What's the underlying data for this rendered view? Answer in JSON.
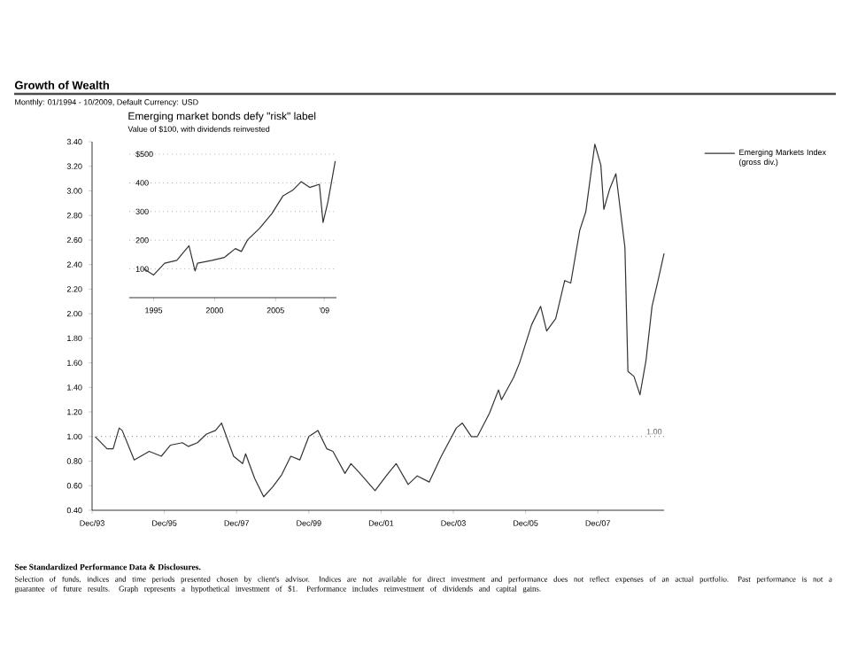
{
  "chart_data": [
    {
      "type": "line",
      "title": "Growth of Wealth",
      "subtitle": "Monthly: 01/1994 - 10/2009, Default Currency: USD",
      "annotations": [
        "See Standardized Performance Data & Disclosures.",
        "Selection of funds, indices and time periods presented chosen by client's advisor. Indices are not available for direct investment and performance does not reflect expenses of an actual portfolio. Past performance is not a guarantee of future results. Graph represents a hypothetical investment of $1. Performance includes reinvestment of dividends and capital gains."
      ],
      "x": [
        "1994-01",
        "1994-05",
        "1994-07",
        "1994-09",
        "1994-10",
        "1995-02",
        "1995-07",
        "1995-11",
        "1996-02",
        "1996-06",
        "1996-08",
        "1996-11",
        "1997-02",
        "1997-05",
        "1997-07",
        "1997-11",
        "1998-02",
        "1998-03",
        "1998-06",
        "1998-09",
        "1998-12",
        "1999-03",
        "1999-06",
        "1999-09",
        "1999-12",
        "2000-03",
        "2000-06",
        "2000-08",
        "2000-12",
        "2001-02",
        "2001-05",
        "2001-10",
        "2002-02",
        "2002-05",
        "2002-09",
        "2002-12",
        "2003-04",
        "2003-08",
        "2004-01",
        "2004-03",
        "2004-06",
        "2004-08",
        "2004-12",
        "2005-03",
        "2005-04",
        "2005-08",
        "2005-10",
        "2006-02",
        "2006-05",
        "2006-07",
        "2006-10",
        "2007-01",
        "2007-03",
        "2007-06",
        "2007-08",
        "2007-11",
        "2008-01",
        "2008-02",
        "2008-04",
        "2008-06",
        "2008-09",
        "2008-10",
        "2008-12",
        "2009-02",
        "2009-04",
        "2009-06",
        "2009-08",
        "2009-10"
      ],
      "series": [
        {
          "name": "Emerging Markets Index (gross div.)",
          "color": "#333333",
          "values": [
            1.0,
            0.9,
            0.9,
            1.07,
            1.05,
            0.81,
            0.88,
            0.84,
            0.93,
            0.95,
            0.92,
            0.95,
            1.02,
            1.05,
            1.11,
            0.84,
            0.78,
            0.86,
            0.66,
            0.51,
            0.59,
            0.69,
            0.84,
            0.81,
            1.0,
            1.05,
            0.9,
            0.88,
            0.7,
            0.78,
            0.7,
            0.56,
            0.69,
            0.78,
            0.61,
            0.68,
            0.63,
            0.84,
            1.07,
            1.11,
            1.0,
            1.0,
            1.19,
            1.38,
            1.3,
            1.48,
            1.6,
            1.91,
            2.06,
            1.86,
            1.96,
            2.27,
            2.25,
            2.68,
            2.83,
            3.38,
            3.21,
            2.85,
            3.02,
            3.14,
            2.54,
            1.53,
            1.49,
            1.34,
            1.62,
            2.06,
            2.27,
            2.49
          ]
        }
      ],
      "xlim": [
        "1993-12",
        "2009-10"
      ],
      "xticks": [
        {
          "value": "1993-12",
          "label": "Dec/93"
        },
        {
          "value": "1995-12",
          "label": "Dec/95"
        },
        {
          "value": "1997-12",
          "label": "Dec/97"
        },
        {
          "value": "1999-12",
          "label": "Dec/99"
        },
        {
          "value": "2001-12",
          "label": "Dec/01"
        },
        {
          "value": "2003-12",
          "label": "Dec/03"
        },
        {
          "value": "2005-12",
          "label": "Dec/05"
        },
        {
          "value": "2007-12",
          "label": "Dec/07"
        }
      ],
      "ylim": [
        0.4,
        3.4
      ],
      "yticks": [
        {
          "value": 0.4,
          "label": "0.40"
        },
        {
          "value": 0.6,
          "label": "0.60"
        },
        {
          "value": 0.8,
          "label": "0.80"
        },
        {
          "value": 1.0,
          "label": "1.00"
        },
        {
          "value": 1.2,
          "label": "1.20"
        },
        {
          "value": 1.4,
          "label": "1.40"
        },
        {
          "value": 1.6,
          "label": "1.60"
        },
        {
          "value": 1.8,
          "label": "1.80"
        },
        {
          "value": 2.0,
          "label": "2.00"
        },
        {
          "value": 2.2,
          "label": "2.20"
        },
        {
          "value": 2.4,
          "label": "2.40"
        },
        {
          "value": 2.6,
          "label": "2.60"
        },
        {
          "value": 2.8,
          "label": "2.80"
        },
        {
          "value": 3.0,
          "label": "3.00"
        },
        {
          "value": 3.2,
          "label": "3.20"
        },
        {
          "value": 3.4,
          "label": "3.40"
        }
      ],
      "ref_lines": [
        {
          "axis": "y",
          "value": 1.0,
          "label": "1.00",
          "color": "#888888",
          "line_style": "dotted"
        }
      ],
      "legend": "right",
      "marker": "none",
      "line_style": "solid"
    },
    {
      "type": "line",
      "title": "Emerging market bonds defy \"risk\" label",
      "subtitle": "Value of $100, with dividends reinvested",
      "x": [
        1994.2,
        1995.0,
        1995.9,
        1996.9,
        1997.9,
        1998.4,
        1998.6,
        1999.8,
        2000.8,
        2001.7,
        2002.2,
        2002.7,
        2003.7,
        2004.7,
        2005.6,
        2006.4,
        2007.1,
        2007.8,
        2008.6,
        2008.9,
        2009.3,
        2009.9
      ],
      "series": [
        {
          "color": "#333333",
          "values": [
            100,
            79,
            120,
            130,
            181,
            93,
            120,
            130,
            140,
            171,
            161,
            201,
            242,
            293,
            354,
            374,
            404,
            384,
            395,
            262,
            334,
            476
          ]
        }
      ],
      "xlim": [
        1993,
        2010
      ],
      "xticks": [
        1995,
        2000,
        2005,
        {
          "value": 2009,
          "label": "'09"
        }
      ],
      "ylim": [
        0,
        500
      ],
      "yticks": [
        100,
        200,
        300,
        400,
        {
          "value": 500,
          "label": "$500"
        }
      ],
      "grid": "y",
      "marker": "none",
      "line_style": "solid"
    }
  ]
}
